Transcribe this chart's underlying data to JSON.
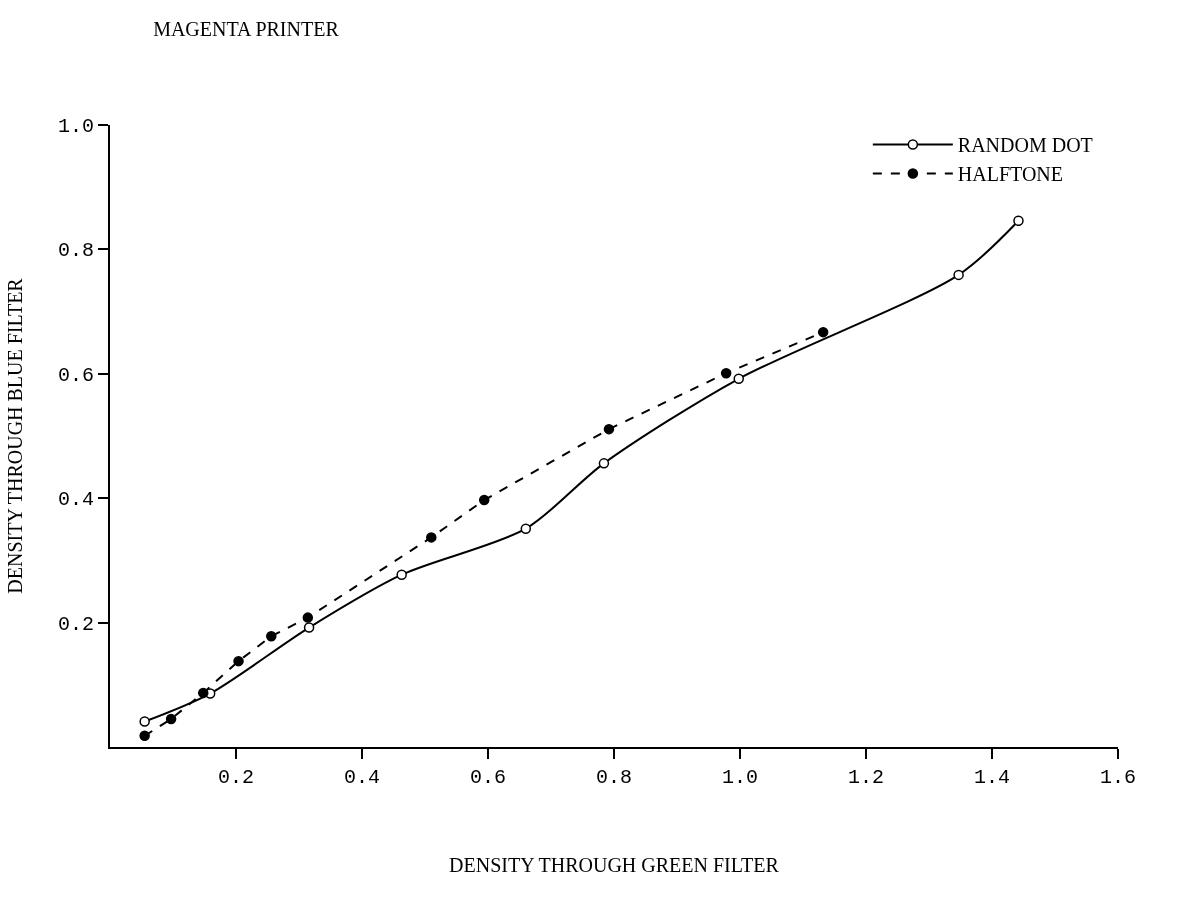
{
  "chart_data": {
    "type": "line",
    "title": "MAGENTA PRINTER",
    "xlabel": "DENSITY THROUGH GREEN FILTER",
    "ylabel": "DENSITY THROUGH BLUE FILTER",
    "xlim": [
      0,
      1.6
    ],
    "xticks": [
      {
        "value": 0.2,
        "label": "0.2"
      },
      {
        "value": 0.4,
        "label": "0.4"
      },
      {
        "value": 0.6,
        "label": "0.6"
      },
      {
        "value": 0.8,
        "label": "0.8"
      },
      {
        "value": 1.0,
        "label": "1.0"
      },
      {
        "value": 1.2,
        "label": "1.2"
      },
      {
        "value": 1.4,
        "label": "1.4"
      },
      {
        "value": 1.6,
        "label": "1.6"
      }
    ],
    "ylim": [
      0,
      1.0
    ],
    "yticks": [
      {
        "value": 0.2,
        "label": "0.2"
      },
      {
        "value": 0.4,
        "label": "0.4"
      },
      {
        "value": 0.6,
        "label": "0.6"
      },
      {
        "value": 0.8,
        "label": "0.8"
      },
      {
        "value": 1.0,
        "label": "1.0"
      }
    ],
    "legend": "top right",
    "marker": "circle",
    "series": [
      {
        "name": "RANDOM DOT",
        "color": "#000000",
        "line_style": "solid",
        "marker": "circle-open",
        "x": [
          0.055,
          0.159,
          0.316,
          0.463,
          0.66,
          0.784,
          0.998,
          1.347,
          1.442
        ],
        "values": [
          0.041,
          0.086,
          0.192,
          0.277,
          0.351,
          0.456,
          0.592,
          0.759,
          0.846
        ]
      },
      {
        "name": "HALFTONE",
        "color": "#000000",
        "line_style": "dashed",
        "x": [
          0.055,
          0.097,
          0.148,
          0.204,
          0.256,
          0.314,
          0.51,
          0.594,
          0.792,
          0.978,
          1.132
        ],
        "values": [
          0.018,
          0.045,
          0.087,
          0.138,
          0.178,
          0.208,
          0.337,
          0.397,
          0.511,
          0.601,
          0.667
        ]
      }
    ]
  }
}
